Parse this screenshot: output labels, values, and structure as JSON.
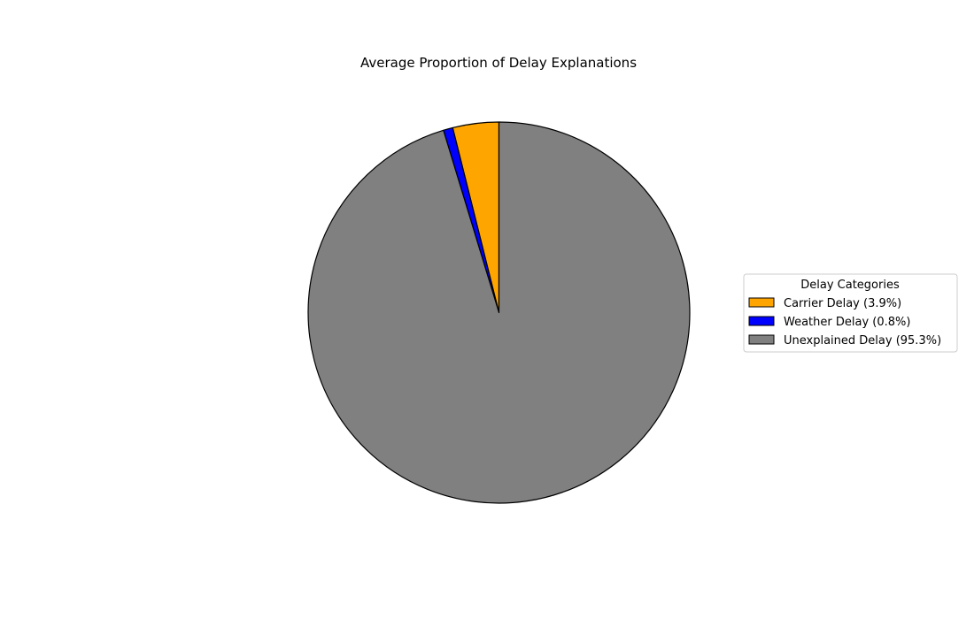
{
  "chart_data": {
    "type": "pie",
    "title": "Average Proportion of Delay Explanations",
    "start_angle_deg": 90,
    "direction": "counterclockwise",
    "slices": [
      {
        "label": "Carrier Delay",
        "value": 3.9,
        "color": "#FFA500"
      },
      {
        "label": "Weather Delay",
        "value": 0.8,
        "color": "#0000FF"
      },
      {
        "label": "Unexplained Delay",
        "value": 95.3,
        "color": "#808080"
      }
    ],
    "legend": {
      "title": "Delay Categories",
      "placement": "right",
      "entries": [
        "Carrier Delay (3.9%)",
        "Weather Delay (0.8%)",
        "Unexplained Delay (95.3%)"
      ]
    },
    "edge_color": "#000000"
  }
}
